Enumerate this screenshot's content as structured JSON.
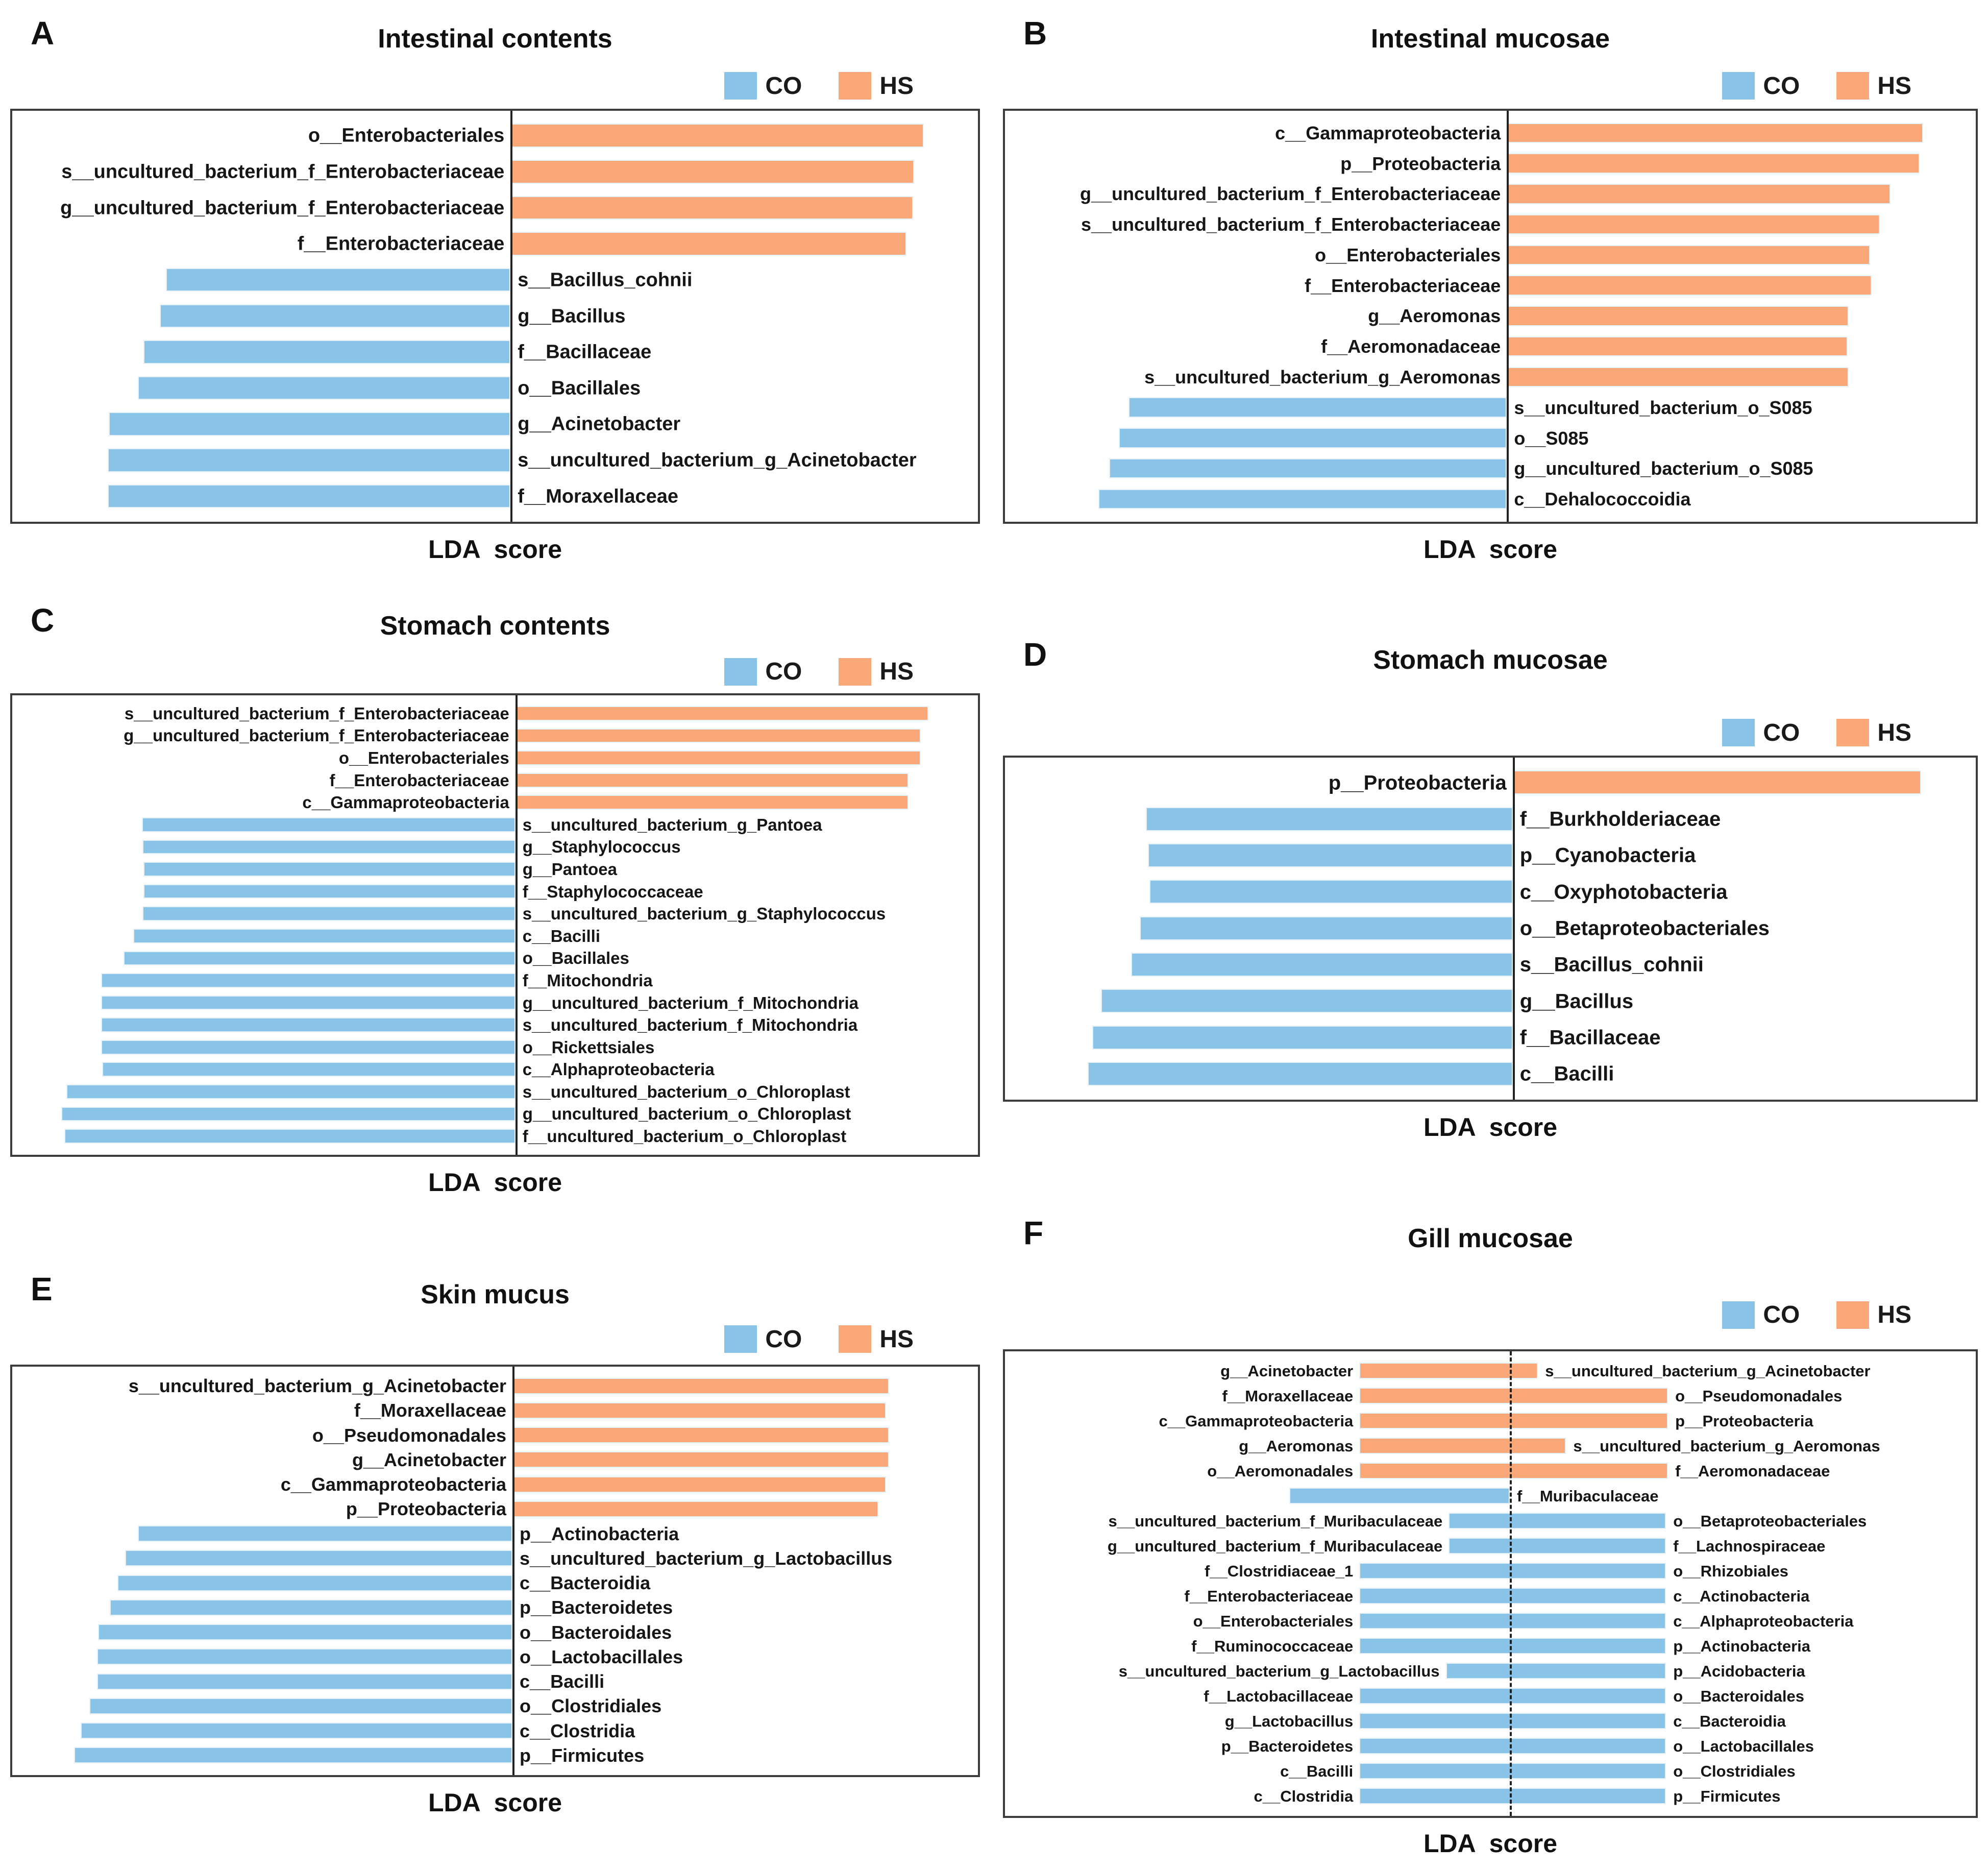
{
  "figure": {
    "xaxis_label": "LDA  score",
    "legend": {
      "co_label": "CO",
      "hs_label": "HS"
    },
    "colors": {
      "co": "#8AC3E8",
      "hs": "#FAA878",
      "box_border": "#3c3c3c",
      "center_line": "#222222"
    }
  },
  "chart_data": [
    {
      "letter": "A",
      "title": "Intestinal contents",
      "type": "bar",
      "orientation": "horizontal",
      "xlabel": "LDA  score",
      "axis_note": "no numeric ticks shown; bar extents are % of axis width",
      "center_pct": 51.6,
      "center_line": "solid",
      "rows": [
        {
          "left_label": "o__Enterobacteriales",
          "right_label": "",
          "group": "HS",
          "start_pct": 51.6,
          "end_pct": 94.4
        },
        {
          "left_label": "s__uncultured_bacterium_f_Enterobacteriaceae",
          "right_label": "",
          "group": "HS",
          "start_pct": 51.6,
          "end_pct": 93.4
        },
        {
          "left_label": "g__uncultured_bacterium_f_Enterobacteriaceae",
          "right_label": "",
          "group": "HS",
          "start_pct": 51.6,
          "end_pct": 93.3
        },
        {
          "left_label": "f__Enterobacteriaceae",
          "right_label": "",
          "group": "HS",
          "start_pct": 51.6,
          "end_pct": 92.6
        },
        {
          "left_label": "",
          "right_label": "s__Bacillus_cohnii",
          "group": "CO",
          "start_pct": 15.9,
          "end_pct": 51.6
        },
        {
          "left_label": "",
          "right_label": "g__Bacillus",
          "group": "CO",
          "start_pct": 15.3,
          "end_pct": 51.6
        },
        {
          "left_label": "",
          "right_label": "f__Bacillaceae",
          "group": "CO",
          "start_pct": 13.6,
          "end_pct": 51.6
        },
        {
          "left_label": "",
          "right_label": "o__Bacillales",
          "group": "CO",
          "start_pct": 13.0,
          "end_pct": 51.6
        },
        {
          "left_label": "",
          "right_label": "g__Acinetobacter",
          "group": "CO",
          "start_pct": 10.0,
          "end_pct": 51.6
        },
        {
          "left_label": "",
          "right_label": "s__uncultured_bacterium_g_Acinetobacter",
          "group": "CO",
          "start_pct": 9.9,
          "end_pct": 51.6
        },
        {
          "left_label": "",
          "right_label": "f__Moraxellaceae",
          "group": "CO",
          "start_pct": 9.9,
          "end_pct": 51.6
        }
      ]
    },
    {
      "letter": "B",
      "title": "Intestinal mucosae",
      "type": "bar",
      "orientation": "horizontal",
      "xlabel": "LDA  score",
      "axis_note": "no numeric ticks shown; bar extents are % of axis width",
      "center_pct": 51.7,
      "center_line": "solid",
      "rows": [
        {
          "left_label": "c__Gammaproteobacteria",
          "right_label": "",
          "group": "HS",
          "start_pct": 51.7,
          "end_pct": 94.6
        },
        {
          "left_label": "p__Proteobacteria",
          "right_label": "",
          "group": "HS",
          "start_pct": 51.7,
          "end_pct": 94.2
        },
        {
          "left_label": "g__uncultured_bacterium_f_Enterobacteriaceae",
          "right_label": "",
          "group": "HS",
          "start_pct": 51.7,
          "end_pct": 91.2
        },
        {
          "left_label": "s__uncultured_bacterium_f_Enterobacteriaceae",
          "right_label": "",
          "group": "HS",
          "start_pct": 51.7,
          "end_pct": 90.1
        },
        {
          "left_label": "o__Enterobacteriales",
          "right_label": "",
          "group": "HS",
          "start_pct": 51.7,
          "end_pct": 89.1
        },
        {
          "left_label": "f__Enterobacteriaceae",
          "right_label": "",
          "group": "HS",
          "start_pct": 51.7,
          "end_pct": 89.3
        },
        {
          "left_label": "g__Aeromonas",
          "right_label": "",
          "group": "HS",
          "start_pct": 51.7,
          "end_pct": 86.9
        },
        {
          "left_label": "f__Aeromonadaceae",
          "right_label": "",
          "group": "HS",
          "start_pct": 51.7,
          "end_pct": 86.8
        },
        {
          "left_label": "s__uncultured_bacterium_g_Aeromonas",
          "right_label": "",
          "group": "HS",
          "start_pct": 51.7,
          "end_pct": 86.9
        },
        {
          "left_label": "",
          "right_label": "s__uncultured_bacterium_o_S085",
          "group": "CO",
          "start_pct": 12.7,
          "end_pct": 51.7
        },
        {
          "left_label": "",
          "right_label": "o__S085",
          "group": "CO",
          "start_pct": 11.7,
          "end_pct": 51.7
        },
        {
          "left_label": "",
          "right_label": "g__uncultured_bacterium_o_S085",
          "group": "CO",
          "start_pct": 10.7,
          "end_pct": 51.7
        },
        {
          "left_label": "",
          "right_label": "c__Dehalococcoidia",
          "group": "CO",
          "start_pct": 9.6,
          "end_pct": 51.7
        }
      ]
    },
    {
      "letter": "C",
      "title": "Stomach contents",
      "type": "bar",
      "orientation": "horizontal",
      "xlabel": "LDA  score",
      "axis_note": "no numeric ticks shown; bar extents are % of axis width",
      "center_pct": 52.1,
      "center_line": "solid",
      "rows": [
        {
          "left_label": "s__uncultured_bacterium_f_Enterobacteriaceae",
          "right_label": "",
          "group": "HS",
          "start_pct": 52.1,
          "end_pct": 94.9
        },
        {
          "left_label": "g__uncultured_bacterium_f_Enterobacteriaceae",
          "right_label": "",
          "group": "HS",
          "start_pct": 52.1,
          "end_pct": 94.1
        },
        {
          "left_label": "o__Enterobacteriales",
          "right_label": "",
          "group": "HS",
          "start_pct": 52.1,
          "end_pct": 94.1
        },
        {
          "left_label": "f__Enterobacteriaceae",
          "right_label": "",
          "group": "HS",
          "start_pct": 52.1,
          "end_pct": 92.8
        },
        {
          "left_label": "c__Gammaproteobacteria",
          "right_label": "",
          "group": "HS",
          "start_pct": 52.1,
          "end_pct": 92.8
        },
        {
          "left_label": "",
          "right_label": "s__uncultured_bacterium_g_Pantoea",
          "group": "CO",
          "start_pct": 13.4,
          "end_pct": 52.1
        },
        {
          "left_label": "",
          "right_label": "g__Staphylococcus",
          "group": "CO",
          "start_pct": 13.5,
          "end_pct": 52.1
        },
        {
          "left_label": "",
          "right_label": "g__Pantoea",
          "group": "CO",
          "start_pct": 13.6,
          "end_pct": 52.1
        },
        {
          "left_label": "",
          "right_label": "f__Staphylococcaceae",
          "group": "CO",
          "start_pct": 13.6,
          "end_pct": 52.1
        },
        {
          "left_label": "",
          "right_label": "s__uncultured_bacterium_g_Staphylococcus",
          "group": "CO",
          "start_pct": 13.5,
          "end_pct": 52.1
        },
        {
          "left_label": "",
          "right_label": "c__Bacilli",
          "group": "CO",
          "start_pct": 12.5,
          "end_pct": 52.1
        },
        {
          "left_label": "",
          "right_label": "o__Bacillales",
          "group": "CO",
          "start_pct": 11.5,
          "end_pct": 52.1
        },
        {
          "left_label": "",
          "right_label": "f__Mitochondria",
          "group": "CO",
          "start_pct": 9.2,
          "end_pct": 52.1
        },
        {
          "left_label": "",
          "right_label": "g__uncultured_bacterium_f_Mitochondria",
          "group": "CO",
          "start_pct": 9.2,
          "end_pct": 52.1
        },
        {
          "left_label": "",
          "right_label": "s__uncultured_bacterium_f_Mitochondria",
          "group": "CO",
          "start_pct": 9.2,
          "end_pct": 52.1
        },
        {
          "left_label": "",
          "right_label": "o__Rickettsiales",
          "group": "CO",
          "start_pct": 9.2,
          "end_pct": 52.1
        },
        {
          "left_label": "",
          "right_label": "c__Alphaproteobacteria",
          "group": "CO",
          "start_pct": 9.3,
          "end_pct": 52.1
        },
        {
          "left_label": "",
          "right_label": "s__uncultured_bacterium_o_Chloroplast",
          "group": "CO",
          "start_pct": 5.6,
          "end_pct": 52.1
        },
        {
          "left_label": "",
          "right_label": "g__uncultured_bacterium_o_Chloroplast",
          "group": "CO",
          "start_pct": 5.1,
          "end_pct": 52.1
        },
        {
          "left_label": "",
          "right_label": "f__uncultured_bacterium_o_Chloroplast",
          "group": "CO",
          "start_pct": 5.4,
          "end_pct": 52.1
        }
      ]
    },
    {
      "letter": "D",
      "title": "Stomach mucosae",
      "type": "bar",
      "orientation": "horizontal",
      "xlabel": "LDA  score",
      "axis_note": "no numeric ticks shown; bar extents are % of axis width",
      "center_pct": 52.3,
      "center_line": "solid",
      "rows": [
        {
          "left_label": "p__Proteobacteria",
          "right_label": "",
          "group": "HS",
          "start_pct": 52.3,
          "end_pct": 94.4
        },
        {
          "left_label": "",
          "right_label": "f__Burkholderiaceae",
          "group": "CO",
          "start_pct": 14.5,
          "end_pct": 52.3
        },
        {
          "left_label": "",
          "right_label": "p__Cyanobacteria",
          "group": "CO",
          "start_pct": 14.7,
          "end_pct": 52.3
        },
        {
          "left_label": "",
          "right_label": "c__Oxyphotobacteria",
          "group": "CO",
          "start_pct": 14.9,
          "end_pct": 52.3
        },
        {
          "left_label": "",
          "right_label": "o__Betaproteobacteriales",
          "group": "CO",
          "start_pct": 13.9,
          "end_pct": 52.3
        },
        {
          "left_label": "",
          "right_label": "s__Bacillus_cohnii",
          "group": "CO",
          "start_pct": 13.0,
          "end_pct": 52.3
        },
        {
          "left_label": "",
          "right_label": "g__Bacillus",
          "group": "CO",
          "start_pct": 9.9,
          "end_pct": 52.3
        },
        {
          "left_label": "",
          "right_label": "f__Bacillaceae",
          "group": "CO",
          "start_pct": 9.0,
          "end_pct": 52.3
        },
        {
          "left_label": "",
          "right_label": "c__Bacilli",
          "group": "CO",
          "start_pct": 8.5,
          "end_pct": 52.3
        }
      ]
    },
    {
      "letter": "E",
      "title": "Skin mucus",
      "type": "bar",
      "orientation": "horizontal",
      "xlabel": "LDA  score",
      "axis_note": "no numeric ticks shown; bar extents are % of axis width",
      "center_pct": 51.8,
      "center_line": "solid",
      "rows": [
        {
          "left_label": "s__uncultured_bacterium_g_Acinetobacter",
          "right_label": "",
          "group": "HS",
          "start_pct": 51.8,
          "end_pct": 90.8
        },
        {
          "left_label": "f__Moraxellaceae",
          "right_label": "",
          "group": "HS",
          "start_pct": 51.8,
          "end_pct": 90.5
        },
        {
          "left_label": "o__Pseudomonadales",
          "right_label": "",
          "group": "HS",
          "start_pct": 51.8,
          "end_pct": 90.8
        },
        {
          "left_label": "g__Acinetobacter",
          "right_label": "",
          "group": "HS",
          "start_pct": 51.8,
          "end_pct": 90.8
        },
        {
          "left_label": "c__Gammaproteobacteria",
          "right_label": "",
          "group": "HS",
          "start_pct": 51.8,
          "end_pct": 90.5
        },
        {
          "left_label": "p__Proteobacteria",
          "right_label": "",
          "group": "HS",
          "start_pct": 51.8,
          "end_pct": 89.7
        },
        {
          "left_label": "",
          "right_label": "p__Actinobacteria",
          "group": "CO",
          "start_pct": 13.0,
          "end_pct": 51.8
        },
        {
          "left_label": "",
          "right_label": "s__uncultured_bacterium_g_Lactobacillus",
          "group": "CO",
          "start_pct": 11.7,
          "end_pct": 51.8
        },
        {
          "left_label": "",
          "right_label": "c__Bacteroidia",
          "group": "CO",
          "start_pct": 10.9,
          "end_pct": 51.8
        },
        {
          "left_label": "",
          "right_label": "p__Bacteroidetes",
          "group": "CO",
          "start_pct": 10.1,
          "end_pct": 51.8
        },
        {
          "left_label": "",
          "right_label": "o__Bacteroidales",
          "group": "CO",
          "start_pct": 8.9,
          "end_pct": 51.8
        },
        {
          "left_label": "",
          "right_label": "o__Lactobacillales",
          "group": "CO",
          "start_pct": 8.8,
          "end_pct": 51.8
        },
        {
          "left_label": "",
          "right_label": "c__Bacilli",
          "group": "CO",
          "start_pct": 8.8,
          "end_pct": 51.8
        },
        {
          "left_label": "",
          "right_label": "o__Clostridiales",
          "group": "CO",
          "start_pct": 8.0,
          "end_pct": 51.8
        },
        {
          "left_label": "",
          "right_label": "c__Clostridia",
          "group": "CO",
          "start_pct": 7.1,
          "end_pct": 51.8
        },
        {
          "left_label": "",
          "right_label": "p__Firmicutes",
          "group": "CO",
          "start_pct": 6.4,
          "end_pct": 51.8
        }
      ]
    },
    {
      "letter": "F",
      "title": "Gill mucosae",
      "type": "bar",
      "orientation": "horizontal",
      "xlabel": "LDA  score",
      "axis_note": "bars span a dashed centre line; extents are % of axis width",
      "center_pct": 52.0,
      "center_line": "dashed",
      "rows": [
        {
          "left_label": "g__Acinetobacter",
          "right_label": "s__uncultured_bacterium_g_Acinetobacter",
          "group": "HS",
          "start_pct": 36.5,
          "end_pct": 54.9
        },
        {
          "left_label": "f__Moraxellaceae",
          "right_label": "o__Pseudomonadales",
          "group": "HS",
          "start_pct": 36.5,
          "end_pct": 68.3
        },
        {
          "left_label": "c__Gammaproteobacteria",
          "right_label": "p__Proteobacteria",
          "group": "HS",
          "start_pct": 36.5,
          "end_pct": 68.3
        },
        {
          "left_label": "g__Aeromonas",
          "right_label": "s__uncultured_bacterium_g_Aeromonas",
          "group": "HS",
          "start_pct": 36.5,
          "end_pct": 57.8
        },
        {
          "left_label": "o__Aeromonadales",
          "right_label": "f__Aeromonadaceae",
          "group": "HS",
          "start_pct": 36.5,
          "end_pct": 68.3
        },
        {
          "left_label": "",
          "right_label": "f__Muribaculaceae",
          "group": "CO",
          "start_pct": 29.3,
          "end_pct": 52.0
        },
        {
          "left_label": "s__uncultured_bacterium_f_Muribaculaceae",
          "right_label": "o__Betaproteobacteriales",
          "group": "CO",
          "start_pct": 45.7,
          "end_pct": 68.1
        },
        {
          "left_label": "g__uncultured_bacterium_f_Muribaculaceae",
          "right_label": "f__Lachnospiraceae",
          "group": "CO",
          "start_pct": 45.7,
          "end_pct": 68.1
        },
        {
          "left_label": "f__Clostridiaceae_1",
          "right_label": "o__Rhizobiales",
          "group": "CO",
          "start_pct": 36.5,
          "end_pct": 68.1
        },
        {
          "left_label": "f__Enterobacteriaceae",
          "right_label": "c__Actinobacteria",
          "group": "CO",
          "start_pct": 36.5,
          "end_pct": 68.1
        },
        {
          "left_label": "o__Enterobacteriales",
          "right_label": "c__Alphaproteobacteria",
          "group": "CO",
          "start_pct": 36.5,
          "end_pct": 68.1
        },
        {
          "left_label": "f__Ruminococcaceae",
          "right_label": "p__Actinobacteria",
          "group": "CO",
          "start_pct": 36.5,
          "end_pct": 68.1
        },
        {
          "left_label": "s__uncultured_bacterium_g_Lactobacillus",
          "right_label": "p__Acidobacteria",
          "group": "CO",
          "start_pct": 45.4,
          "end_pct": 68.1
        },
        {
          "left_label": "f__Lactobacillaceae",
          "right_label": "o__Bacteroidales",
          "group": "CO",
          "start_pct": 36.5,
          "end_pct": 68.1
        },
        {
          "left_label": "g__Lactobacillus",
          "right_label": "c__Bacteroidia",
          "group": "CO",
          "start_pct": 36.5,
          "end_pct": 68.1
        },
        {
          "left_label": "p__Bacteroidetes",
          "right_label": "o__Lactobacillales",
          "group": "CO",
          "start_pct": 36.5,
          "end_pct": 68.1
        },
        {
          "left_label": "c__Bacilli",
          "right_label": "o__Clostridiales",
          "group": "CO",
          "start_pct": 36.5,
          "end_pct": 68.1
        },
        {
          "left_label": "c__Clostridia",
          "right_label": "p__Firmicutes",
          "group": "CO",
          "start_pct": 36.5,
          "end_pct": 68.1
        }
      ]
    }
  ]
}
